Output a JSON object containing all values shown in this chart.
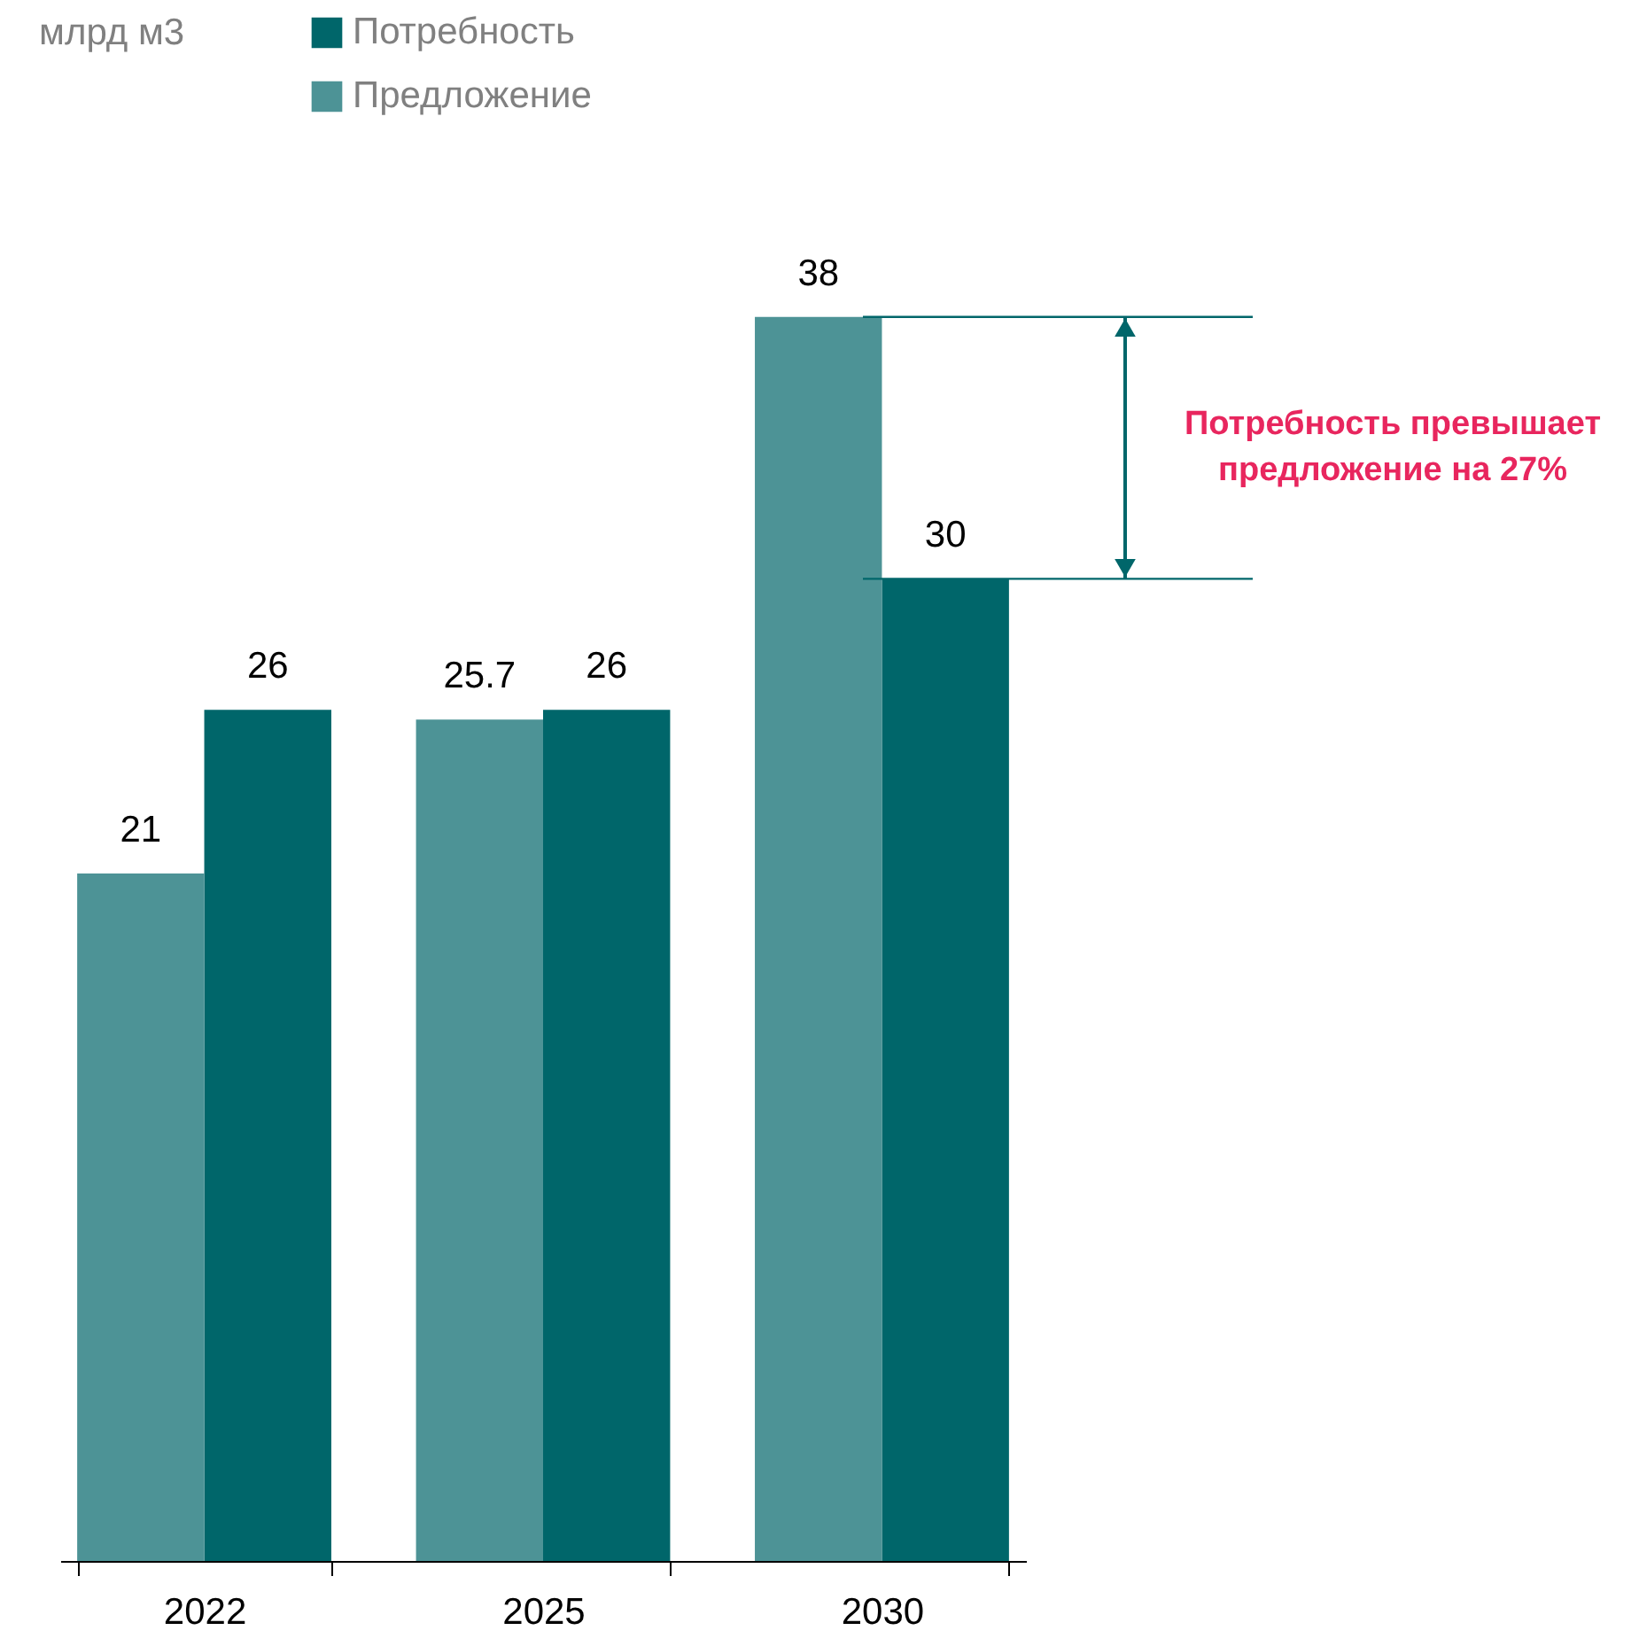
{
  "chart_data": {
    "type": "bar",
    "categories": [
      "2022",
      "2025",
      "2030"
    ],
    "series": [
      {
        "name": "Потребность",
        "color": "#00666a",
        "values": [
          26,
          26,
          30
        ]
      },
      {
        "name": "Предложение",
        "color": "#4d9396",
        "values": [
          21,
          25.7,
          38
        ]
      }
    ],
    "data_labels": true,
    "legend": "top",
    "grid": false,
    "ref_lines": [
      {
        "axis": "y",
        "value": 38,
        "color": "#00666a"
      },
      {
        "axis": "y",
        "value": 30,
        "color": "#00666a"
      }
    ],
    "annotations": [
      "млрд м3",
      "Потребность превышает предложение на 27%"
    ]
  }
}
